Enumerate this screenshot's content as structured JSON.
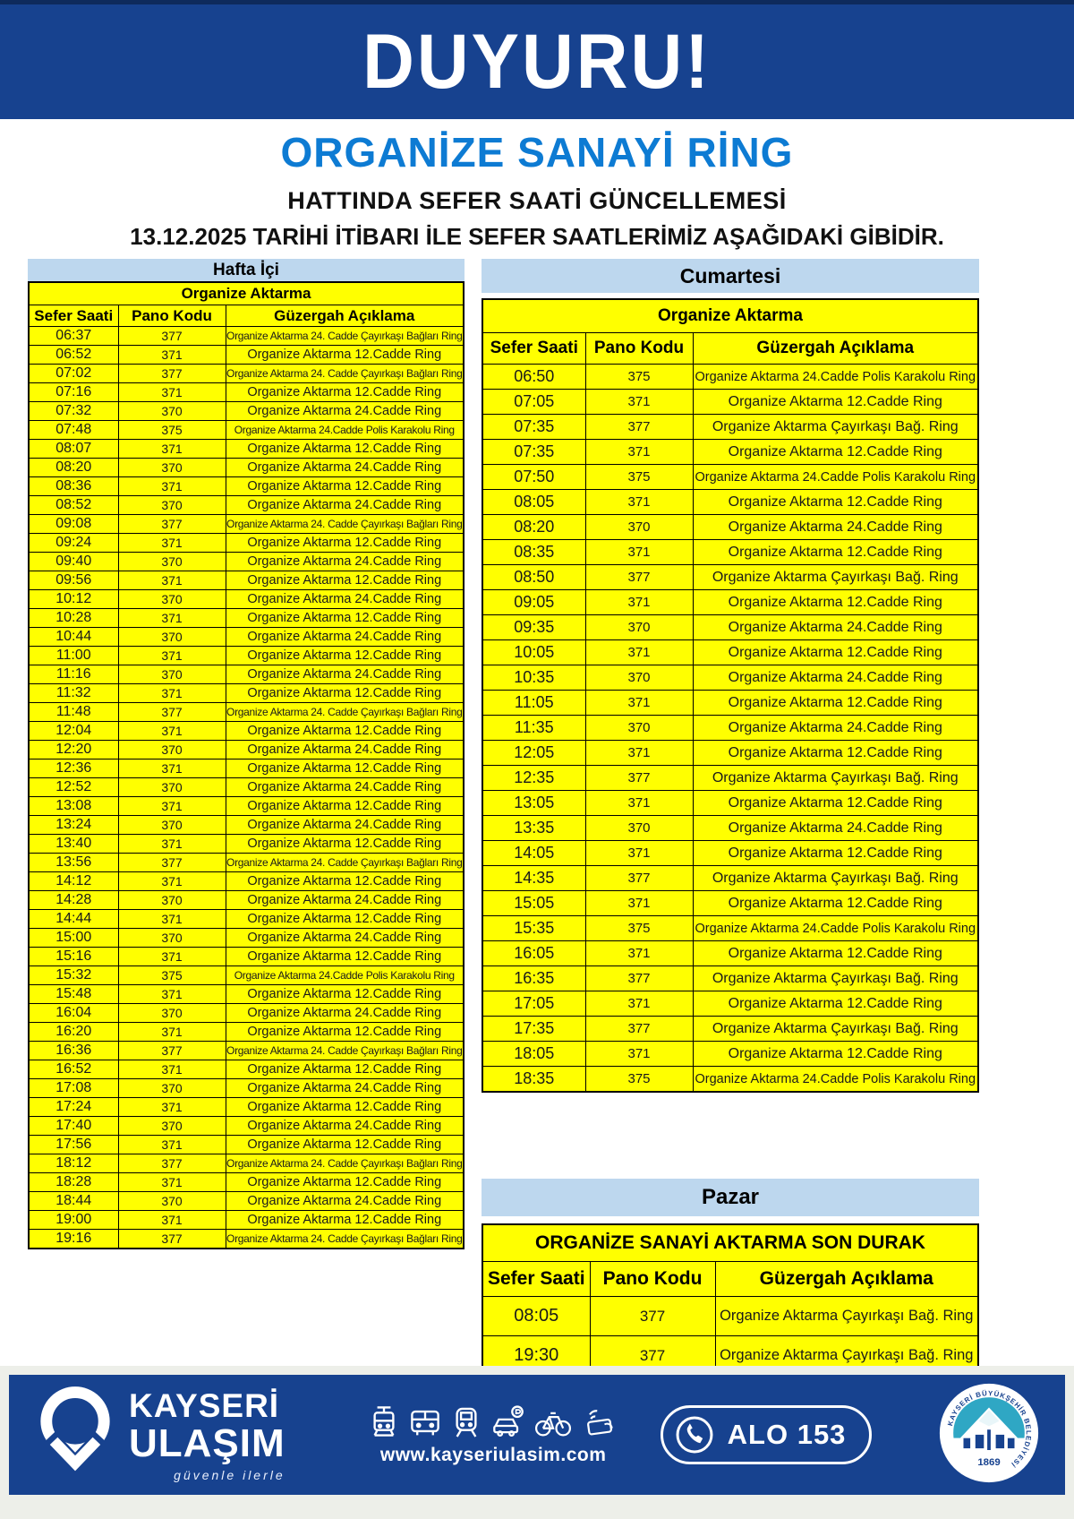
{
  "banner": {
    "title": "DUYURU!"
  },
  "heading": {
    "line1": "ORGANİZE SANAYİ RİNG",
    "line2": "HATTINDA SEFER SAATİ GÜNCELLEMESİ",
    "line3": "13.12.2025 TARİHİ İTİBARI İLE SEFER SAATLERİMİZ AŞAĞIDAKİ GİBİDİR."
  },
  "columns": {
    "time": "Sefer Saati",
    "code": "Pano Kodu",
    "route": "Güzergah Açıklama"
  },
  "weekday_table": {
    "day": "Hafta İçi",
    "subtitle": "Organize Aktarma",
    "rows": [
      [
        "06:37",
        "377",
        "Organize Aktarma 24. Cadde Çayırkaşı Bağları Ring"
      ],
      [
        "06:52",
        "371",
        "Organize Aktarma 12.Cadde Ring"
      ],
      [
        "07:02",
        "377",
        "Organize Aktarma 24. Cadde Çayırkaşı Bağları Ring"
      ],
      [
        "07:16",
        "371",
        "Organize Aktarma 12.Cadde Ring"
      ],
      [
        "07:32",
        "370",
        "Organize Aktarma 24.Cadde Ring"
      ],
      [
        "07:48",
        "375",
        "Organize Aktarma 24.Cadde Polis Karakolu Ring"
      ],
      [
        "08:07",
        "371",
        "Organize Aktarma 12.Cadde Ring"
      ],
      [
        "08:20",
        "370",
        "Organize Aktarma 24.Cadde Ring"
      ],
      [
        "08:36",
        "371",
        "Organize Aktarma 12.Cadde Ring"
      ],
      [
        "08:52",
        "370",
        "Organize Aktarma 24.Cadde Ring"
      ],
      [
        "09:08",
        "377",
        "Organize Aktarma 24. Cadde Çayırkaşı Bağları Ring"
      ],
      [
        "09:24",
        "371",
        "Organize Aktarma 12.Cadde Ring"
      ],
      [
        "09:40",
        "370",
        "Organize Aktarma 24.Cadde Ring"
      ],
      [
        "09:56",
        "371",
        "Organize Aktarma 12.Cadde Ring"
      ],
      [
        "10:12",
        "370",
        "Organize Aktarma 24.Cadde Ring"
      ],
      [
        "10:28",
        "371",
        "Organize Aktarma 12.Cadde Ring"
      ],
      [
        "10:44",
        "370",
        "Organize Aktarma 24.Cadde Ring"
      ],
      [
        "11:00",
        "371",
        "Organize Aktarma 12.Cadde Ring"
      ],
      [
        "11:16",
        "370",
        "Organize Aktarma 24.Cadde Ring"
      ],
      [
        "11:32",
        "371",
        "Organize Aktarma 12.Cadde Ring"
      ],
      [
        "11:48",
        "377",
        "Organize Aktarma 24. Cadde Çayırkaşı Bağları Ring"
      ],
      [
        "12:04",
        "371",
        "Organize Aktarma 12.Cadde Ring"
      ],
      [
        "12:20",
        "370",
        "Organize Aktarma 24.Cadde Ring"
      ],
      [
        "12:36",
        "371",
        "Organize Aktarma 12.Cadde Ring"
      ],
      [
        "12:52",
        "370",
        "Organize Aktarma 24.Cadde Ring"
      ],
      [
        "13:08",
        "371",
        "Organize Aktarma 12.Cadde Ring"
      ],
      [
        "13:24",
        "370",
        "Organize Aktarma 24.Cadde Ring"
      ],
      [
        "13:40",
        "371",
        "Organize Aktarma 12.Cadde Ring"
      ],
      [
        "13:56",
        "377",
        "Organize Aktarma 24. Cadde Çayırkaşı Bağları Ring"
      ],
      [
        "14:12",
        "371",
        "Organize Aktarma 12.Cadde Ring"
      ],
      [
        "14:28",
        "370",
        "Organize Aktarma 24.Cadde Ring"
      ],
      [
        "14:44",
        "371",
        "Organize Aktarma 12.Cadde Ring"
      ],
      [
        "15:00",
        "370",
        "Organize Aktarma 24.Cadde Ring"
      ],
      [
        "15:16",
        "371",
        "Organize Aktarma 12.Cadde Ring"
      ],
      [
        "15:32",
        "375",
        "Organize Aktarma 24.Cadde Polis Karakolu Ring"
      ],
      [
        "15:48",
        "371",
        "Organize Aktarma 12.Cadde Ring"
      ],
      [
        "16:04",
        "370",
        "Organize Aktarma 24.Cadde Ring"
      ],
      [
        "16:20",
        "371",
        "Organize Aktarma 12.Cadde Ring"
      ],
      [
        "16:36",
        "377",
        "Organize Aktarma 24. Cadde Çayırkaşı Bağları Ring"
      ],
      [
        "16:52",
        "371",
        "Organize Aktarma 12.Cadde Ring"
      ],
      [
        "17:08",
        "370",
        "Organize Aktarma 24.Cadde Ring"
      ],
      [
        "17:24",
        "371",
        "Organize Aktarma 12.Cadde Ring"
      ],
      [
        "17:40",
        "370",
        "Organize Aktarma 24.Cadde Ring"
      ],
      [
        "17:56",
        "371",
        "Organize Aktarma 12.Cadde Ring"
      ],
      [
        "18:12",
        "377",
        "Organize Aktarma 24. Cadde Çayırkaşı Bağları Ring"
      ],
      [
        "18:28",
        "371",
        "Organize Aktarma 12.Cadde Ring"
      ],
      [
        "18:44",
        "370",
        "Organize Aktarma 24.Cadde Ring"
      ],
      [
        "19:00",
        "371",
        "Organize Aktarma 12.Cadde Ring"
      ],
      [
        "19:16",
        "377",
        "Organize Aktarma 24. Cadde Çayırkaşı Bağları Ring"
      ]
    ]
  },
  "saturday_table": {
    "day": "Cumartesi",
    "subtitle": "Organize Aktarma",
    "rows": [
      [
        "06:50",
        "375",
        "Organize Aktarma 24.Cadde Polis Karakolu Ring"
      ],
      [
        "07:05",
        "371",
        "Organize Aktarma 12.Cadde Ring"
      ],
      [
        "07:35",
        "377",
        "Organize Aktarma Çayırkaşı Bağ. Ring"
      ],
      [
        "07:35",
        "371",
        "Organize Aktarma 12.Cadde Ring"
      ],
      [
        "07:50",
        "375",
        "Organize Aktarma 24.Cadde Polis Karakolu Ring"
      ],
      [
        "08:05",
        "371",
        "Organize Aktarma 12.Cadde Ring"
      ],
      [
        "08:20",
        "370",
        "Organize Aktarma 24.Cadde Ring"
      ],
      [
        "08:35",
        "371",
        "Organize Aktarma 12.Cadde Ring"
      ],
      [
        "08:50",
        "377",
        "Organize Aktarma Çayırkaşı Bağ. Ring"
      ],
      [
        "09:05",
        "371",
        "Organize Aktarma 12.Cadde Ring"
      ],
      [
        "09:35",
        "370",
        "Organize Aktarma 24.Cadde Ring"
      ],
      [
        "10:05",
        "371",
        "Organize Aktarma 12.Cadde Ring"
      ],
      [
        "10:35",
        "370",
        "Organize Aktarma 24.Cadde Ring"
      ],
      [
        "11:05",
        "371",
        "Organize Aktarma 12.Cadde Ring"
      ],
      [
        "11:35",
        "370",
        "Organize Aktarma 24.Cadde Ring"
      ],
      [
        "12:05",
        "371",
        "Organize Aktarma 12.Cadde Ring"
      ],
      [
        "12:35",
        "377",
        "Organize Aktarma Çayırkaşı Bağ. Ring"
      ],
      [
        "13:05",
        "371",
        "Organize Aktarma 12.Cadde Ring"
      ],
      [
        "13:35",
        "370",
        "Organize Aktarma 24.Cadde Ring"
      ],
      [
        "14:05",
        "371",
        "Organize Aktarma 12.Cadde Ring"
      ],
      [
        "14:35",
        "377",
        "Organize Aktarma Çayırkaşı Bağ. Ring"
      ],
      [
        "15:05",
        "371",
        "Organize Aktarma 12.Cadde Ring"
      ],
      [
        "15:35",
        "375",
        "Organize Aktarma 24.Cadde Polis Karakolu Ring"
      ],
      [
        "16:05",
        "371",
        "Organize Aktarma 12.Cadde Ring"
      ],
      [
        "16:35",
        "377",
        "Organize Aktarma Çayırkaşı Bağ. Ring"
      ],
      [
        "17:05",
        "371",
        "Organize Aktarma 12.Cadde Ring"
      ],
      [
        "17:35",
        "377",
        "Organize Aktarma Çayırkaşı Bağ. Ring"
      ],
      [
        "18:05",
        "371",
        "Organize Aktarma 12.Cadde Ring"
      ],
      [
        "18:35",
        "375",
        "Organize Aktarma 24.Cadde Polis Karakolu Ring"
      ]
    ]
  },
  "sunday_table": {
    "day": "Pazar",
    "subtitle": "ORGANİZE SANAYİ AKTARMA SON DURAK",
    "rows": [
      [
        "08:05",
        "377",
        "Organize Aktarma Çayırkaşı Bağ. Ring"
      ],
      [
        "19:30",
        "377",
        "Organize Aktarma Çayırkaşı Bağ. Ring"
      ]
    ]
  },
  "footer": {
    "brand_line1": "KAYSERİ",
    "brand_line2": "ULAŞIM",
    "tagline": "güvenle ilerle",
    "website": "www.kayseriulasim.com",
    "phone_label": "ALO 153",
    "seal_text": "KAYSERİ BÜYÜKŞEHİR BELEDİYESİ",
    "seal_year": "1869"
  },
  "colors": {
    "navy": "#17428f",
    "title_blue": "#0d7bd3",
    "table_yellow": "#ffff00",
    "day_band_blue": "#bdd7ee",
    "seal_teal": "#2fa7c4"
  }
}
